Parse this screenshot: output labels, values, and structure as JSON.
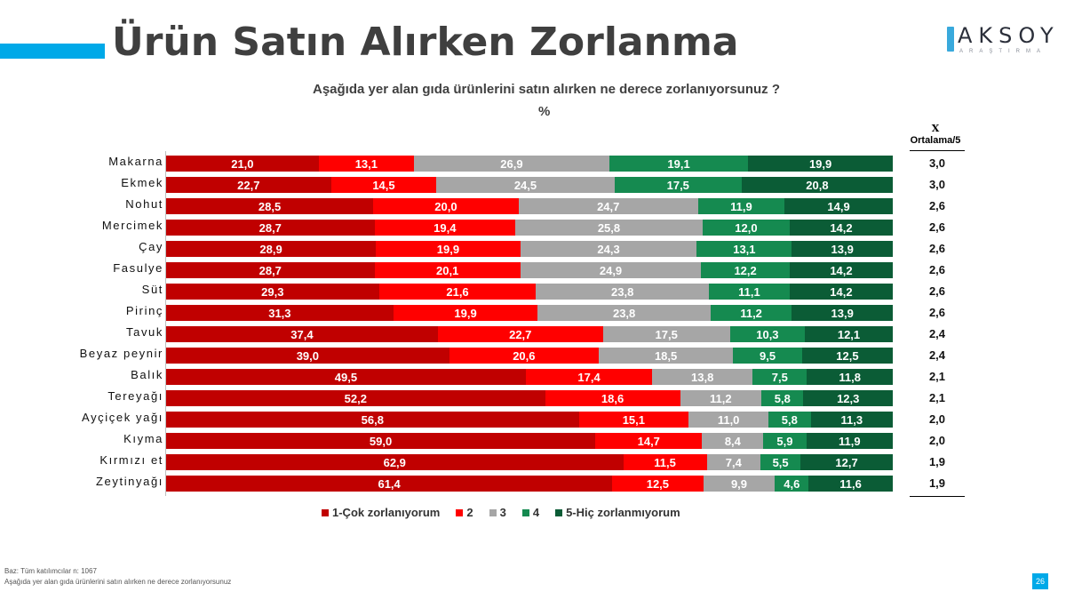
{
  "header": {
    "title": "Ürün Satın Alırken Zorlanma",
    "logo_main": "AKSOY",
    "logo_sub": "ARAŞTIRMA",
    "logo_icon": "pen-nib-icon"
  },
  "question": "Aşağıda yer alan gıda ürünlerini satın alırken ne derece zorlanıyorsunuz   ?",
  "unit": "%",
  "average_column": {
    "symbol": "X",
    "label": "Ortalama/5",
    "values": [
      "3,0",
      "3,0",
      "2,6",
      "2,6",
      "2,6",
      "2,6",
      "2,6",
      "2,6",
      "2,4",
      "2,4",
      "2,1",
      "2,1",
      "2,0",
      "2,0",
      "1,9",
      "1,9"
    ]
  },
  "footer": {
    "base": "Baz: Tüm katılımcılar n: 1067",
    "question": "Aşağıda yer alan gıda ürünlerini satın alırken ne derece zorlanıyorsunuz"
  },
  "page_number": "26",
  "chart_data": {
    "type": "bar",
    "orientation": "horizontal",
    "stacked": true,
    "percent_stacked": true,
    "title": "Aşağıda yer alan gıda ürünlerini satın alırken ne derece zorlanıyorsunuz ?",
    "subtitle": "%",
    "xlabel": "",
    "ylabel": "",
    "xlim": [
      0,
      100
    ],
    "grid": false,
    "legend_position": "bottom",
    "categories": [
      "Makarna",
      "Ekmek",
      "Nohut",
      "Mercimek",
      "Çay",
      "Fasulye",
      "Süt",
      "Pirinç",
      "Tavuk",
      "Beyaz peynir",
      "Balık",
      "Tereyağı",
      "Ayçiçek yağı",
      "Kıyma",
      "Kırmızı et",
      "Zeytinyağı"
    ],
    "series": [
      {
        "name": "1-Çok zorlanıyorum",
        "color": "#c00000",
        "values": [
          21.0,
          22.7,
          28.5,
          28.7,
          28.9,
          28.7,
          29.3,
          31.3,
          37.4,
          39.0,
          49.5,
          52.2,
          56.8,
          59.0,
          62.9,
          61.4
        ]
      },
      {
        "name": "2",
        "color": "#ff0000",
        "values": [
          13.1,
          14.5,
          20.0,
          19.4,
          19.9,
          20.1,
          21.6,
          19.9,
          22.7,
          20.6,
          17.4,
          18.6,
          15.1,
          14.7,
          11.5,
          12.5
        ]
      },
      {
        "name": "3",
        "color": "#a6a6a6",
        "values": [
          26.9,
          24.5,
          24.7,
          25.8,
          24.3,
          24.9,
          23.8,
          23.8,
          17.5,
          18.5,
          13.8,
          11.2,
          11.0,
          8.4,
          7.4,
          9.9
        ]
      },
      {
        "name": "4",
        "color": "#158a50",
        "values": [
          19.1,
          17.5,
          11.9,
          12.0,
          13.1,
          12.2,
          11.1,
          11.2,
          10.3,
          9.5,
          7.5,
          5.8,
          5.8,
          5.9,
          5.5,
          4.6
        ]
      },
      {
        "name": "5-Hiç zorlanmıyorum",
        "color": "#0b5c36",
        "values": [
          19.9,
          20.8,
          14.9,
          14.2,
          13.9,
          14.2,
          14.2,
          13.9,
          12.1,
          12.5,
          11.8,
          12.3,
          11.3,
          11.9,
          12.7,
          11.6
        ]
      }
    ],
    "data_labels": [
      [
        "21,0",
        "22,7",
        "28,5",
        "28,7",
        "28,9",
        "28,7",
        "29,3",
        "31,3",
        "37,4",
        "39,0",
        "49,5",
        "52,2",
        "56,8",
        "59,0",
        "62,9",
        "61,4"
      ],
      [
        "13,1",
        "14,5",
        "20,0",
        "19,4",
        "19,9",
        "20,1",
        "21,6",
        "19,9",
        "22,7",
        "20,6",
        "17,4",
        "18,6",
        "15,1",
        "14,7",
        "11,5",
        "12,5"
      ],
      [
        "26,9",
        "24,5",
        "24,7",
        "25,8",
        "24,3",
        "24,9",
        "23,8",
        "23,8",
        "17,5",
        "18,5",
        "13,8",
        "11,2",
        "11,0",
        "8,4",
        "7,4",
        "9,9"
      ],
      [
        "19,1",
        "17,5",
        "11,9",
        "12,0",
        "13,1",
        "12,2",
        "11,1",
        "11,2",
        "10,3",
        "9,5",
        "7,5",
        "5,8",
        "5,8",
        "5,9",
        "5,5",
        "4,6"
      ],
      [
        "19,9",
        "20,8",
        "14,9",
        "14,2",
        "13,9",
        "14,2",
        "14,2",
        "13,9",
        "12,1",
        "12,5",
        "11,8",
        "12,3",
        "11,3",
        "11,9",
        "12,7",
        "11,6"
      ]
    ]
  }
}
